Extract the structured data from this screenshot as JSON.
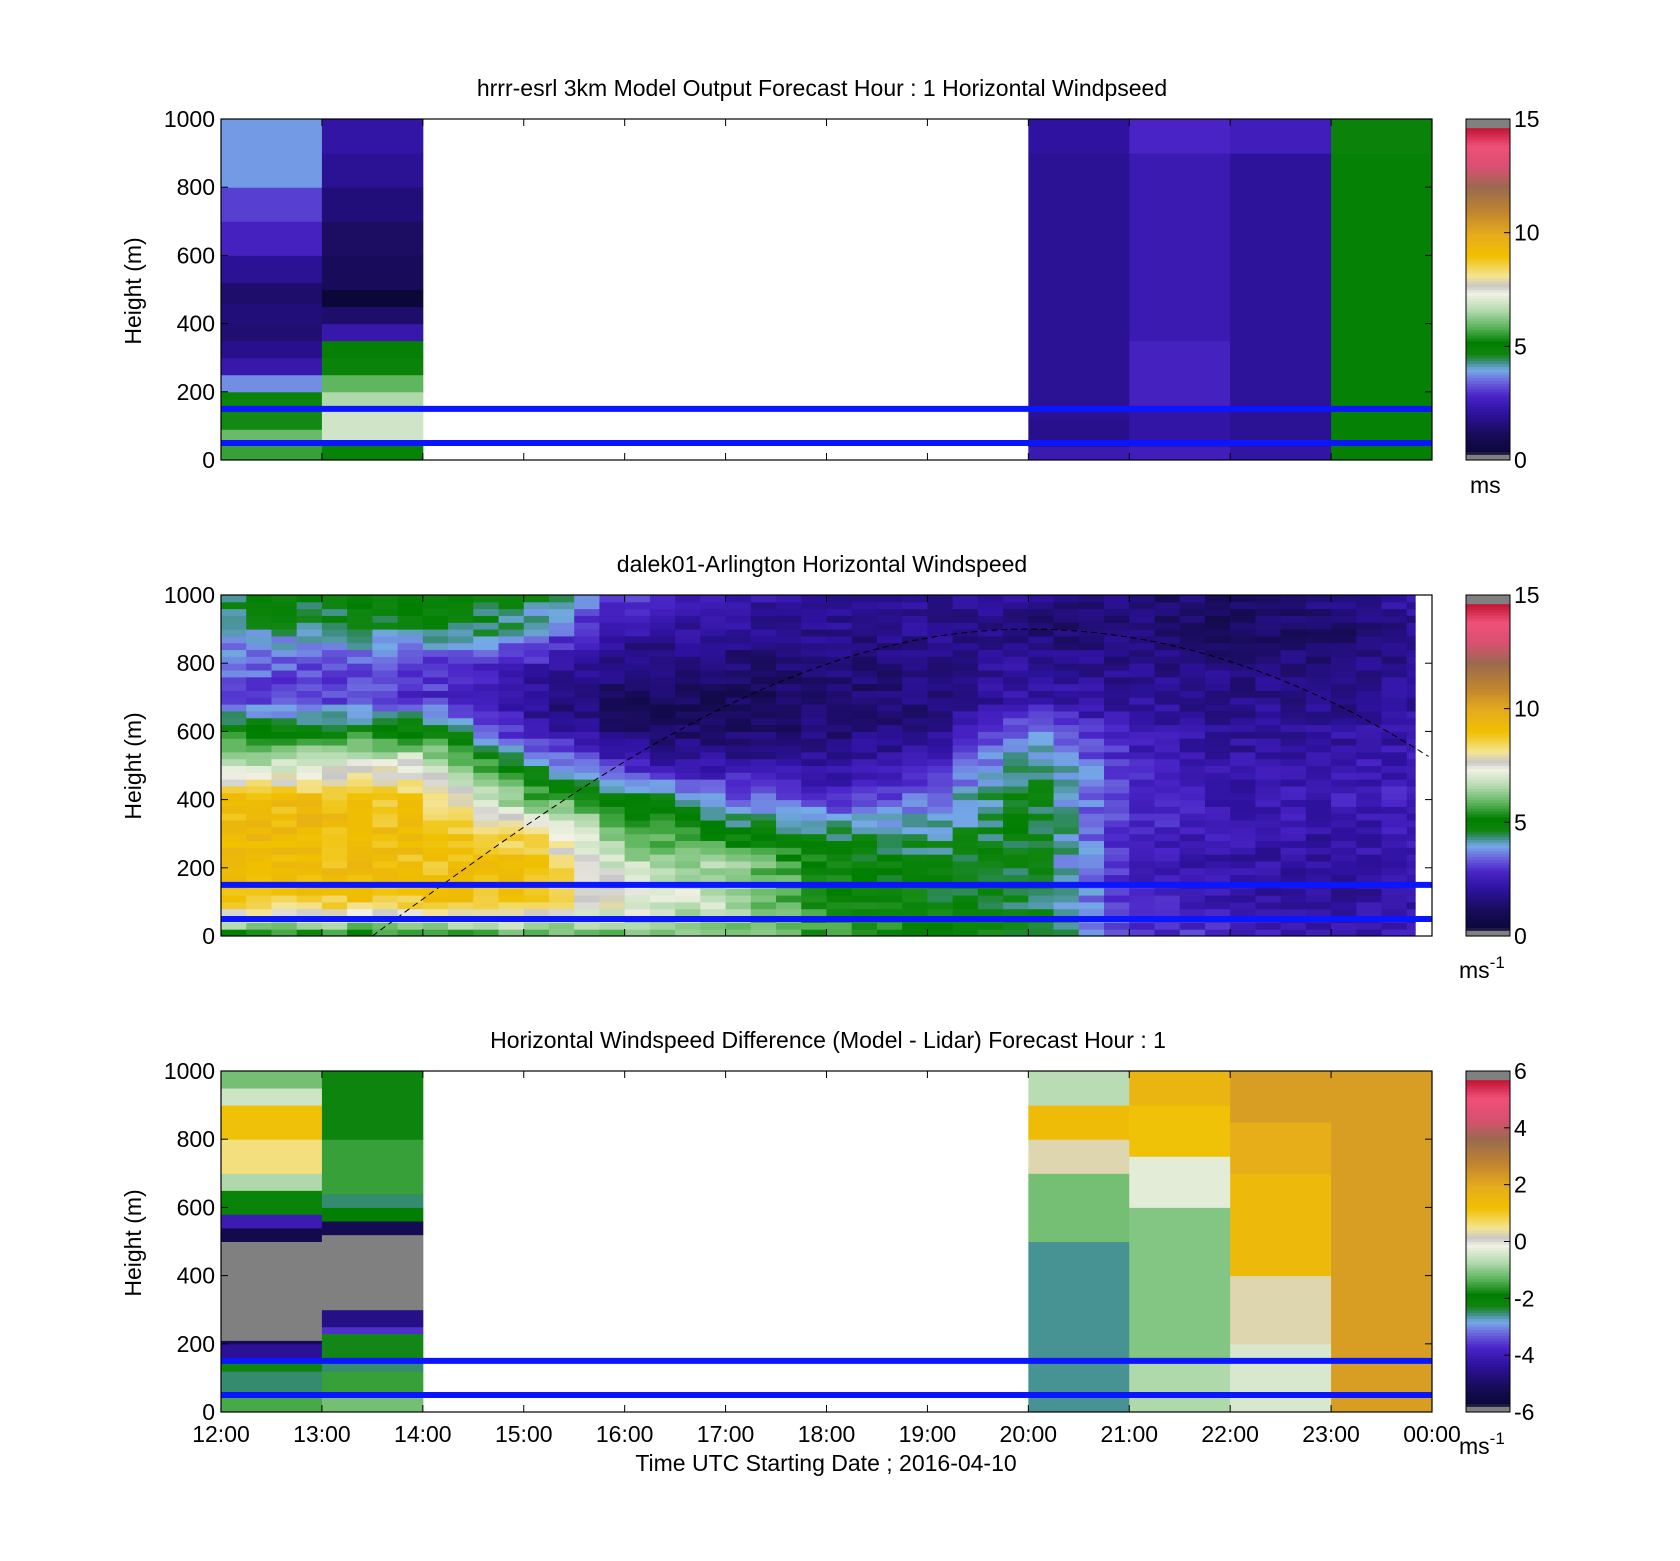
{
  "figure": {
    "xlabel": "Time UTC  Starting Date ; 2016-04-10"
  },
  "chart_data": [
    {
      "type": "heatmap",
      "title": "hrrr-esrl 3km Model Output   Forecast Hour : 1 Horizontal Windpseed",
      "ylabel": "Height (m)",
      "ylim": [
        0,
        1000
      ],
      "yticks": [
        "0",
        "200",
        "400",
        "600",
        "800",
        "1000"
      ],
      "xlim": [
        "12:00",
        "00:00"
      ],
      "x_ticks": [
        "12:00",
        "13:00",
        "14:00",
        "15:00",
        "16:00",
        "17:00",
        "18:00",
        "19:00",
        "20:00",
        "21:00",
        "22:00",
        "23:00",
        "00:00"
      ],
      "colorbar": {
        "min": 0,
        "max": 15,
        "ticks": [
          "0",
          "5",
          "10",
          "15"
        ],
        "unit": "ms"
      },
      "reference_lines_m": [
        50,
        150
      ],
      "columns": [
        {
          "start": "12:00",
          "end": "13:00",
          "profile": [
            {
              "z0": 0,
              "z1": 50,
              "v": 5.5
            },
            {
              "z0": 50,
              "z1": 90,
              "v": 5.9
            },
            {
              "z0": 90,
              "z1": 140,
              "v": 5.2
            },
            {
              "z0": 140,
              "z1": 180,
              "v": 4.6
            },
            {
              "z0": 180,
              "z1": 200,
              "v": 4.8
            },
            {
              "z0": 200,
              "z1": 250,
              "v": 3.6
            },
            {
              "z0": 250,
              "z1": 300,
              "v": 2.1
            },
            {
              "z0": 300,
              "z1": 350,
              "v": 1.6
            },
            {
              "z0": 350,
              "z1": 400,
              "v": 1.2
            },
            {
              "z0": 400,
              "z1": 460,
              "v": 1.3
            },
            {
              "z0": 460,
              "z1": 520,
              "v": 1.1
            },
            {
              "z0": 520,
              "z1": 600,
              "v": 1.7
            },
            {
              "z0": 600,
              "z1": 700,
              "v": 2.5
            },
            {
              "z0": 700,
              "z1": 800,
              "v": 2.9
            },
            {
              "z0": 800,
              "z1": 1000,
              "v": 3.7
            }
          ]
        },
        {
          "start": "13:00",
          "end": "14:00",
          "profile": [
            {
              "z0": 0,
              "z1": 50,
              "v": 4.8
            },
            {
              "z0": 50,
              "z1": 150,
              "v": 6.9
            },
            {
              "z0": 150,
              "z1": 200,
              "v": 6.5
            },
            {
              "z0": 200,
              "z1": 250,
              "v": 5.8
            },
            {
              "z0": 250,
              "z1": 300,
              "v": 4.7
            },
            {
              "z0": 300,
              "z1": 350,
              "v": 4.9
            },
            {
              "z0": 350,
              "z1": 400,
              "v": 2.1
            },
            {
              "z0": 400,
              "z1": 450,
              "v": 1.1
            },
            {
              "z0": 450,
              "z1": 500,
              "v": 0.0
            },
            {
              "z0": 500,
              "z1": 600,
              "v": 0.8
            },
            {
              "z0": 600,
              "z1": 700,
              "v": 1.0
            },
            {
              "z0": 700,
              "z1": 800,
              "v": 1.3
            },
            {
              "z0": 800,
              "z1": 900,
              "v": 1.7
            },
            {
              "z0": 900,
              "z1": 1000,
              "v": 2.0
            }
          ]
        },
        {
          "start": "20:00",
          "end": "21:00",
          "profile": [
            {
              "z0": 0,
              "z1": 40,
              "v": 2.2
            },
            {
              "z0": 40,
              "z1": 120,
              "v": 1.6
            },
            {
              "z0": 120,
              "z1": 900,
              "v": 1.7
            },
            {
              "z0": 900,
              "z1": 1000,
              "v": 1.9
            }
          ]
        },
        {
          "start": "21:00",
          "end": "22:00",
          "profile": [
            {
              "z0": 0,
              "z1": 40,
              "v": 2.4
            },
            {
              "z0": 40,
              "z1": 150,
              "v": 2.0
            },
            {
              "z0": 150,
              "z1": 350,
              "v": 2.5
            },
            {
              "z0": 350,
              "z1": 900,
              "v": 2.2
            },
            {
              "z0": 900,
              "z1": 1000,
              "v": 2.6
            }
          ]
        },
        {
          "start": "22:00",
          "end": "23:00",
          "profile": [
            {
              "z0": 0,
              "z1": 40,
              "v": 2.0
            },
            {
              "z0": 40,
              "z1": 150,
              "v": 1.7
            },
            {
              "z0": 150,
              "z1": 900,
              "v": 1.8
            },
            {
              "z0": 900,
              "z1": 1000,
              "v": 2.4
            }
          ]
        },
        {
          "start": "23:00",
          "end": "00:00",
          "profile": [
            {
              "z0": 0,
              "z1": 40,
              "v": 4.9
            },
            {
              "z0": 40,
              "z1": 900,
              "v": 5.1
            },
            {
              "z0": 900,
              "z1": 1000,
              "v": 4.7
            }
          ]
        }
      ]
    },
    {
      "type": "heatmap",
      "title": "dalek01-Arlington  Horizontal Windspeed",
      "ylabel": "Height (m)",
      "ylim": [
        0,
        1000
      ],
      "yticks": [
        "0",
        "200",
        "400",
        "600",
        "800",
        "1000"
      ],
      "xlim": [
        "12:00",
        "00:00"
      ],
      "x_ticks": [
        "12:00",
        "13:00",
        "14:00",
        "15:00",
        "16:00",
        "17:00",
        "18:00",
        "19:00",
        "20:00",
        "21:00",
        "22:00",
        "23:00",
        "00:00"
      ],
      "colorbar": {
        "min": 0,
        "max": 15,
        "ticks": [
          "0",
          "5",
          "10",
          "15"
        ],
        "unit": "ms",
        "unit_exp": "-1"
      },
      "reference_lines_m": [
        50,
        150
      ],
      "data_end": "23:50",
      "column_minutes": 15,
      "row_meters": 20,
      "speed_profile_anchors": {
        "times": [
          "12:00",
          "13:00",
          "14:00",
          "15:00",
          "16:00",
          "17:00",
          "18:00",
          "19:00",
          "20:00",
          "21:00",
          "22:00",
          "23:00",
          "23:50"
        ],
        "heights": [
          0,
          100,
          200,
          300,
          400,
          500,
          600,
          700,
          800,
          900,
          1000
        ],
        "values": [
          [
            5.0,
            9.0,
            9.2,
            9.3,
            9.2,
            6.5,
            5.0,
            3.0,
            3.3,
            4.0,
            4.5
          ],
          [
            5.0,
            8.8,
            9.2,
            9.3,
            9.2,
            7.0,
            5.0,
            2.8,
            3.2,
            4.2,
            4.8
          ],
          [
            5.0,
            8.8,
            9.0,
            9.1,
            8.8,
            7.5,
            5.0,
            2.8,
            3.0,
            4.5,
            5.0
          ],
          [
            5.5,
            9.0,
            9.1,
            8.5,
            6.0,
            4.5,
            2.5,
            1.6,
            2.5,
            4.0,
            4.8
          ],
          [
            6.0,
            7.5,
            6.8,
            6.0,
            5.0,
            2.5,
            1.2,
            0.8,
            1.4,
            2.0,
            3.0
          ],
          [
            6.0,
            6.8,
            6.5,
            5.0,
            3.5,
            2.0,
            1.0,
            0.8,
            1.2,
            1.8,
            2.2
          ],
          [
            5.5,
            5.0,
            5.0,
            4.5,
            2.8,
            1.8,
            1.3,
            1.1,
            1.3,
            1.6,
            1.8
          ],
          [
            5.0,
            4.8,
            4.7,
            4.0,
            3.5,
            2.2,
            1.6,
            1.3,
            1.5,
            1.6,
            1.7
          ],
          [
            4.8,
            4.5,
            4.6,
            4.8,
            4.7,
            4.5,
            3.5,
            2.0,
            1.8,
            1.2,
            1.7
          ],
          [
            3.0,
            2.8,
            2.6,
            2.6,
            2.6,
            2.6,
            2.3,
            1.8,
            1.6,
            1.2,
            1.3
          ],
          [
            2.5,
            2.1,
            2.0,
            2.1,
            2.2,
            2.0,
            1.8,
            1.6,
            1.4,
            0.9,
            1.0
          ],
          [
            2.2,
            1.9,
            1.8,
            2.0,
            2.3,
            2.1,
            1.8,
            1.6,
            1.4,
            1.0,
            1.5
          ],
          [
            2.4,
            2.0,
            1.9,
            2.2,
            2.4,
            2.3,
            2.0,
            1.8,
            1.7,
            1.6,
            2.0
          ]
        ]
      },
      "dashed_curve": {
        "start": "13:30",
        "peak_time": "20:00",
        "peak_height": 900,
        "end": "00:00",
        "end_height": 520
      }
    },
    {
      "type": "heatmap",
      "title": "Horizontal Windspeed Difference (Model - Lidar) Forecast Hour : 1",
      "ylabel": "Height (m)",
      "ylim": [
        0,
        1000
      ],
      "yticks": [
        "0",
        "200",
        "400",
        "600",
        "800",
        "1000"
      ],
      "xlim": [
        "12:00",
        "00:00"
      ],
      "x_ticks": [
        "12:00",
        "13:00",
        "14:00",
        "15:00",
        "16:00",
        "17:00",
        "18:00",
        "19:00",
        "20:00",
        "21:00",
        "22:00",
        "23:00",
        "00:00"
      ],
      "colorbar": {
        "min": -6,
        "max": 6,
        "ticks": [
          "-6",
          "-4",
          "-2",
          "0",
          "2",
          "4",
          "6"
        ],
        "unit": "ms",
        "unit_exp": "-1"
      },
      "reference_lines_m": [
        50,
        150
      ],
      "columns": [
        {
          "start": "12:00",
          "end": "13:00",
          "profile": [
            {
              "z0": 0,
              "z1": 60,
              "v": -1.5
            },
            {
              "z0": 60,
              "z1": 120,
              "v": -2.6
            },
            {
              "z0": 120,
              "z1": 150,
              "v": -2.3
            },
            {
              "z0": 150,
              "z1": 200,
              "v": -4.6
            },
            {
              "z0": 200,
              "z1": 210,
              "v": -5.4
            },
            {
              "z0": 210,
              "z1": 500,
              "v": null
            },
            {
              "z0": 500,
              "z1": 540,
              "v": -5.6
            },
            {
              "z0": 540,
              "z1": 580,
              "v": -4.2
            },
            {
              "z0": 580,
              "z1": 650,
              "v": -2.2
            },
            {
              "z0": 650,
              "z1": 700,
              "v": -0.8
            },
            {
              "z0": 700,
              "z1": 800,
              "v": 0.6
            },
            {
              "z0": 800,
              "z1": 900,
              "v": 1.2
            },
            {
              "z0": 900,
              "z1": 950,
              "v": -0.5
            },
            {
              "z0": 950,
              "z1": 1000,
              "v": -1.2
            }
          ]
        },
        {
          "start": "13:00",
          "end": "14:00",
          "profile": [
            {
              "z0": 0,
              "z1": 60,
              "v": -1.2
            },
            {
              "z0": 60,
              "z1": 120,
              "v": -1.6
            },
            {
              "z0": 120,
              "z1": 160,
              "v": -2.6
            },
            {
              "z0": 160,
              "z1": 230,
              "v": -2.4
            },
            {
              "z0": 230,
              "z1": 250,
              "v": -3.8
            },
            {
              "z0": 250,
              "z1": 300,
              "v": -4.8
            },
            {
              "z0": 300,
              "z1": 520,
              "v": null
            },
            {
              "z0": 520,
              "z1": 560,
              "v": -5.5
            },
            {
              "z0": 560,
              "z1": 600,
              "v": -2.0
            },
            {
              "z0": 600,
              "z1": 640,
              "v": -2.6
            },
            {
              "z0": 640,
              "z1": 800,
              "v": -1.6
            },
            {
              "z0": 800,
              "z1": 1000,
              "v": -2.3
            }
          ]
        },
        {
          "start": "20:00",
          "end": "21:00",
          "profile": [
            {
              "z0": 0,
              "z1": 500,
              "v": -2.7
            },
            {
              "z0": 500,
              "z1": 700,
              "v": -1.2
            },
            {
              "z0": 700,
              "z1": 800,
              "v": 0.3
            },
            {
              "z0": 800,
              "z1": 900,
              "v": 1.4
            },
            {
              "z0": 900,
              "z1": 1000,
              "v": -0.7
            }
          ]
        },
        {
          "start": "21:00",
          "end": "22:00",
          "profile": [
            {
              "z0": 0,
              "z1": 150,
              "v": -0.8
            },
            {
              "z0": 150,
              "z1": 600,
              "v": -1.1
            },
            {
              "z0": 600,
              "z1": 750,
              "v": -0.3
            },
            {
              "z0": 750,
              "z1": 900,
              "v": 1.2
            },
            {
              "z0": 900,
              "z1": 1000,
              "v": 1.7
            }
          ]
        },
        {
          "start": "22:00",
          "end": "23:00",
          "profile": [
            {
              "z0": 0,
              "z1": 200,
              "v": -0.4
            },
            {
              "z0": 200,
              "z1": 400,
              "v": 0.3
            },
            {
              "z0": 400,
              "z1": 700,
              "v": 1.5
            },
            {
              "z0": 700,
              "z1": 850,
              "v": 1.9
            },
            {
              "z0": 850,
              "z1": 1000,
              "v": 2.3
            }
          ]
        },
        {
          "start": "23:00",
          "end": "00:00",
          "profile": [
            {
              "z0": 0,
              "z1": 1000,
              "v": 2.3
            }
          ]
        }
      ]
    }
  ]
}
